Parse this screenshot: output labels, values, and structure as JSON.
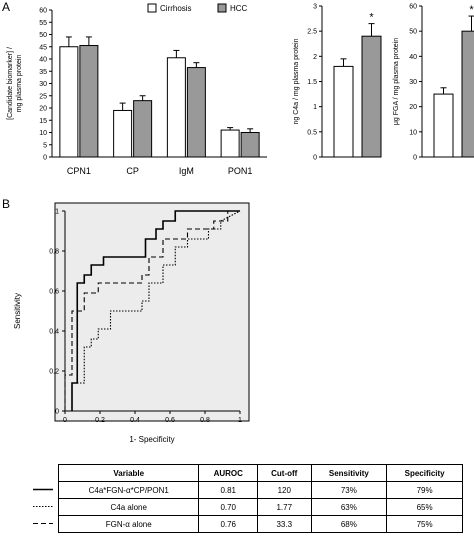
{
  "panel_a_label": "A",
  "panel_b_label": "B",
  "chart_data": [
    {
      "type": "bar",
      "categories": [
        "CPN1",
        "CP",
        "IgM",
        "PON1"
      ],
      "series": [
        {
          "name": "Cirrhosis",
          "values": [
            45,
            19,
            40.5,
            11
          ],
          "errors": [
            4,
            3,
            3,
            1
          ],
          "color": "#ffffff"
        },
        {
          "name": "HCC",
          "values": [
            45.5,
            23,
            36.5,
            10
          ],
          "errors": [
            3.5,
            2,
            2,
            1.5
          ],
          "color": "#999999"
        }
      ],
      "ylabel_lines": [
        "[Candidate biomarker] /",
        "mg plasma protein"
      ],
      "ylim": [
        0,
        60
      ],
      "yticks": [
        "0",
        "5",
        "10",
        "15",
        "20",
        "25",
        "30",
        "35",
        "40",
        "45",
        "50",
        "55",
        "60"
      ],
      "legend": "top"
    },
    {
      "type": "bar",
      "categories": [
        "Cirrhosis",
        "HCC"
      ],
      "values": [
        1.8,
        2.4
      ],
      "errors": [
        0.15,
        0.25
      ],
      "colors": [
        "#ffffff",
        "#999999"
      ],
      "significance": [
        "",
        "*"
      ],
      "ylabel": "ng C4a / mg plasma protein",
      "ylim": [
        0,
        3
      ],
      "yticks": [
        "0",
        "0.5",
        "1",
        "1.5",
        "2",
        "2.5",
        "3"
      ]
    },
    {
      "type": "bar",
      "categories": [
        "Cirrhosis",
        "HCC"
      ],
      "values": [
        25,
        50
      ],
      "errors": [
        2.5,
        6
      ],
      "colors": [
        "#ffffff",
        "#999999"
      ],
      "significance": [
        "",
        "*"
      ],
      "ylabel": "μg FGA / mg plasma protein",
      "ylim": [
        0,
        60
      ],
      "yticks": [
        "0",
        "10",
        "20",
        "30",
        "40",
        "50",
        "60"
      ]
    },
    {
      "type": "line",
      "xlabel": "1- Specificity",
      "ylabel": "Sensitivity",
      "xlim": [
        0,
        1
      ],
      "ylim": [
        0,
        1
      ],
      "xticks": [
        "0",
        "0.2",
        "0.4",
        "0.6",
        "0.8",
        "1"
      ],
      "yticks": [
        "0",
        "0.2",
        "0.4",
        "0.6",
        "0.8",
        "1"
      ],
      "series": [
        {
          "name": "C4a*FGN-α*CP/PON1",
          "style": "solid",
          "x": [
            0.04,
            0.04,
            0.07,
            0.07,
            0.11,
            0.11,
            0.15,
            0.15,
            0.22,
            0.22,
            0.46,
            0.46,
            0.52,
            0.52,
            0.56,
            0.56,
            0.63,
            0.63,
            0.74,
            0.74,
            0.89,
            0.89,
            1.0
          ],
          "y": [
            0,
            0.14,
            0.14,
            0.64,
            0.64,
            0.68,
            0.68,
            0.73,
            0.73,
            0.77,
            0.77,
            0.86,
            0.86,
            0.91,
            0.91,
            0.95,
            0.95,
            1.0,
            1.0,
            1.0,
            1.0,
            1.0,
            1.0
          ]
        },
        {
          "name": "C4a alone",
          "style": "dotted",
          "x": [
            0.04,
            0.04,
            0.11,
            0.11,
            0.15,
            0.15,
            0.19,
            0.19,
            0.26,
            0.26,
            0.44,
            0.44,
            0.48,
            0.48,
            0.56,
            0.56,
            0.63,
            0.63,
            0.7,
            0.7,
            0.82,
            0.82,
            0.89,
            0.89,
            1.0
          ],
          "y": [
            0,
            0.14,
            0.14,
            0.32,
            0.32,
            0.36,
            0.36,
            0.41,
            0.41,
            0.5,
            0.5,
            0.55,
            0.55,
            0.64,
            0.64,
            0.73,
            0.73,
            0.82,
            0.82,
            0.86,
            0.86,
            0.91,
            0.91,
            0.95,
            1.0
          ]
        },
        {
          "name": "FGN-α alone",
          "style": "dashed",
          "x": [
            0.0,
            0.0,
            0.04,
            0.04,
            0.11,
            0.11,
            0.19,
            0.19,
            0.44,
            0.44,
            0.48,
            0.48,
            0.56,
            0.56,
            0.7,
            0.7,
            0.85,
            0.85,
            0.93,
            0.93,
            1.0
          ],
          "y": [
            0,
            0.18,
            0.18,
            0.5,
            0.5,
            0.59,
            0.59,
            0.64,
            0.64,
            0.68,
            0.68,
            0.77,
            0.77,
            0.86,
            0.86,
            0.91,
            0.91,
            0.95,
            0.95,
            1.0,
            1.0
          ]
        }
      ]
    }
  ],
  "roc_table": {
    "headers": [
      "Variable",
      "AUROC",
      "Cut-off",
      "Sensitivity",
      "Specificity"
    ],
    "rows": [
      {
        "style": "solid",
        "cells": [
          "C4a*FGN-α*CP/PON1",
          "0.81",
          "120",
          "73%",
          "79%"
        ]
      },
      {
        "style": "dotted",
        "cells": [
          "C4a alone",
          "0.70",
          "1.77",
          "63%",
          "65%"
        ]
      },
      {
        "style": "dashed",
        "cells": [
          "FGN-α alone",
          "0.76",
          "33.3",
          "68%",
          "75%"
        ]
      }
    ]
  }
}
